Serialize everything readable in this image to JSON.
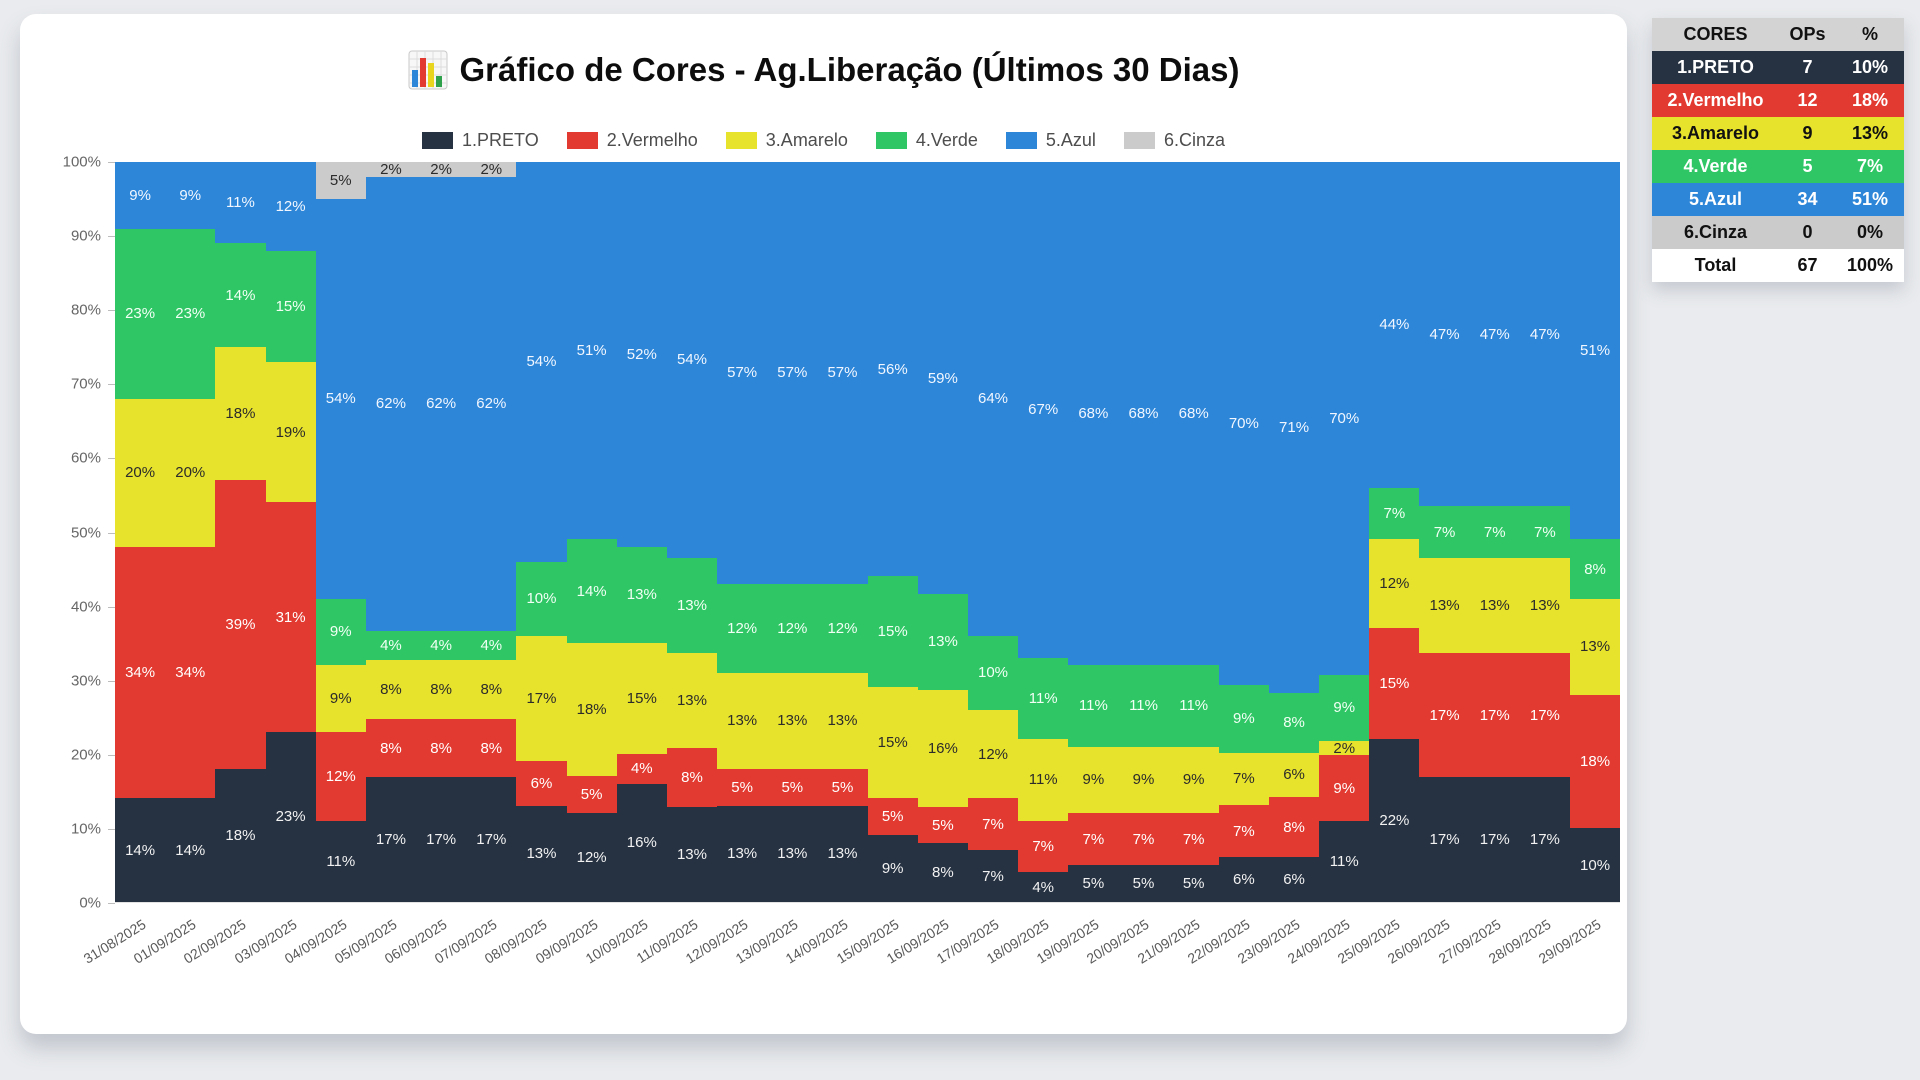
{
  "title": {
    "text": "Gráfico de Cores - Ag.Liberação (Últimos 30 Dias)"
  },
  "legend": [
    {
      "label": "1.PRETO",
      "color": "#263242"
    },
    {
      "label": "2.Vermelho",
      "color": "#e23a30"
    },
    {
      "label": "3.Amarelo",
      "color": "#e7e22c"
    },
    {
      "label": "4.Verde",
      "color": "#2fc765"
    },
    {
      "label": "5.Azul",
      "color": "#2d86d8"
    },
    {
      "label": "6.Cinza",
      "color": "#cbcbcb"
    }
  ],
  "chart_data": {
    "type": "bar",
    "stacked": true,
    "percent_of_total": true,
    "title": "Gráfico de Cores - Ag.Liberação (Últimos 30 Dias)",
    "xlabel": "",
    "ylabel": "",
    "ylim": [
      0,
      100
    ],
    "grid": false,
    "legend_position": "top",
    "yticks": [
      "0%",
      "10%",
      "20%",
      "30%",
      "40%",
      "50%",
      "60%",
      "70%",
      "80%",
      "90%",
      "100%"
    ],
    "x": [
      "31/08/2025",
      "01/09/2025",
      "02/09/2025",
      "03/09/2025",
      "04/09/2025",
      "05/09/2025",
      "06/09/2025",
      "07/09/2025",
      "08/09/2025",
      "09/09/2025",
      "10/09/2025",
      "11/09/2025",
      "12/09/2025",
      "13/09/2025",
      "14/09/2025",
      "15/09/2025",
      "16/09/2025",
      "17/09/2025",
      "18/09/2025",
      "19/09/2025",
      "20/09/2025",
      "21/09/2025",
      "22/09/2025",
      "23/09/2025",
      "24/09/2025",
      "25/09/2025",
      "26/09/2025",
      "27/09/2025",
      "28/09/2025",
      "29/09/2025"
    ],
    "series": [
      {
        "name": "1.PRETO",
        "color": "#263242",
        "label_color": "#f2f2f2",
        "values": [
          14,
          14,
          18,
          23,
          11,
          17,
          17,
          17,
          13,
          12,
          16,
          13,
          13,
          13,
          13,
          9,
          8,
          7,
          4,
          5,
          5,
          5,
          6,
          6,
          11,
          22,
          17,
          17,
          17,
          10
        ]
      },
      {
        "name": "2.Vermelho",
        "color": "#e23a30",
        "label_color": "#ffffff",
        "values": [
          34,
          34,
          39,
          31,
          12,
          8,
          8,
          8,
          6,
          5,
          4,
          8,
          5,
          5,
          5,
          5,
          5,
          7,
          7,
          7,
          7,
          7,
          7,
          8,
          9,
          15,
          17,
          17,
          17,
          18
        ]
      },
      {
        "name": "3.Amarelo",
        "color": "#e7e22c",
        "label_color": "#2b2b2b",
        "values": [
          20,
          20,
          18,
          19,
          9,
          8,
          8,
          8,
          17,
          18,
          15,
          13,
          13,
          13,
          13,
          15,
          16,
          12,
          11,
          9,
          9,
          9,
          7,
          6,
          2,
          12,
          13,
          13,
          13,
          13
        ]
      },
      {
        "name": "4.Verde",
        "color": "#2fc765",
        "label_color": "#f2fff5",
        "values": [
          23,
          23,
          14,
          15,
          9,
          4,
          4,
          4,
          10,
          14,
          13,
          13,
          12,
          12,
          12,
          15,
          13,
          10,
          11,
          11,
          11,
          11,
          9,
          8,
          9,
          7,
          7,
          7,
          7,
          8
        ]
      },
      {
        "name": "5.Azul",
        "color": "#2d86d8",
        "label_color": "#f2f7ff",
        "values": [
          9,
          9,
          11,
          12,
          54,
          62,
          62,
          62,
          54,
          51,
          52,
          54,
          57,
          57,
          57,
          56,
          59,
          64,
          67,
          68,
          68,
          68,
          70,
          71,
          70,
          44,
          47,
          47,
          47,
          51
        ]
      },
      {
        "name": "6.Cinza",
        "color": "#cbcbcb",
        "label_color": "#2b2b2b",
        "values": [
          0,
          0,
          0,
          0,
          5,
          2,
          2,
          2,
          0,
          0,
          0,
          0,
          0,
          0,
          0,
          0,
          0,
          0,
          0,
          0,
          0,
          0,
          0,
          0,
          0,
          0,
          0,
          0,
          0,
          0
        ]
      }
    ]
  },
  "table": {
    "headers": [
      "CORES",
      "OPs",
      "%"
    ],
    "header_bg": "#d3d3d3",
    "header_fg": "#111111",
    "rows": [
      {
        "label": "1.PRETO",
        "ops": "7",
        "pct": "10%",
        "bg": "#263242",
        "fg": "#ffffff"
      },
      {
        "label": "2.Vermelho",
        "ops": "12",
        "pct": "18%",
        "bg": "#e23a30",
        "fg": "#ffffff"
      },
      {
        "label": "3.Amarelo",
        "ops": "9",
        "pct": "13%",
        "bg": "#e7e22c",
        "fg": "#111111"
      },
      {
        "label": "4.Verde",
        "ops": "5",
        "pct": "7%",
        "bg": "#2fc765",
        "fg": "#ffffff"
      },
      {
        "label": "5.Azul",
        "ops": "34",
        "pct": "51%",
        "bg": "#2d86d8",
        "fg": "#ffffff"
      },
      {
        "label": "6.Cinza",
        "ops": "0",
        "pct": "0%",
        "bg": "#cbcbcb",
        "fg": "#111111"
      },
      {
        "label": "Total",
        "ops": "67",
        "pct": "100%",
        "bg": "#ffffff",
        "fg": "#111111"
      }
    ]
  }
}
